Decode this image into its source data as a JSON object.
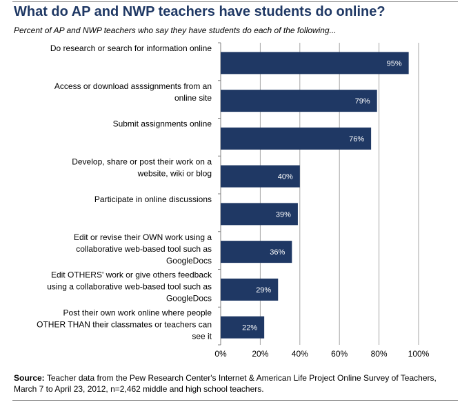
{
  "title": "What do AP and NWP teachers have students do online?",
  "subtitle": "Percent of AP and NWP teachers who say they have students do each of the following...",
  "source_label": "Source:",
  "source_text": "Teacher data from the Pew Research Center's Internet & American Life Project Online Survey of Teachers, March 7 to April 23, 2012, n=2,462 middle and high school teachers.",
  "chart_data": {
    "type": "bar",
    "orientation": "horizontal",
    "categories": [
      [
        "Do research or search for information online"
      ],
      [
        "Access or download asssignments from an",
        "online site"
      ],
      [
        "Submit assignments online"
      ],
      [
        "Develop, share or post their work on a",
        "website, wiki or blog"
      ],
      [
        "Participate in online discussions"
      ],
      [
        "Edit or revise their OWN work using a",
        "collaborative web-based tool such as",
        "GoogleDocs"
      ],
      [
        "Edit OTHERS' work or give others feedback",
        "using a collaborative web-based tool such as",
        "GoogleDocs"
      ],
      [
        "Post their own work online where people",
        "OTHER THAN their classmates or teachers can",
        "see it"
      ]
    ],
    "values": [
      95,
      79,
      76,
      40,
      39,
      36,
      29,
      22
    ],
    "value_labels": [
      "95%",
      "79%",
      "76%",
      "40%",
      "39%",
      "36%",
      "29%",
      "22%"
    ],
    "xlim": [
      0,
      100
    ],
    "xticks": [
      0,
      20,
      40,
      60,
      80,
      100
    ],
    "xtick_labels": [
      "0%",
      "20%",
      "40%",
      "60%",
      "80%",
      "100%"
    ],
    "grid": true,
    "bar_color": "#1f3864",
    "label_color": "#ffffff"
  }
}
